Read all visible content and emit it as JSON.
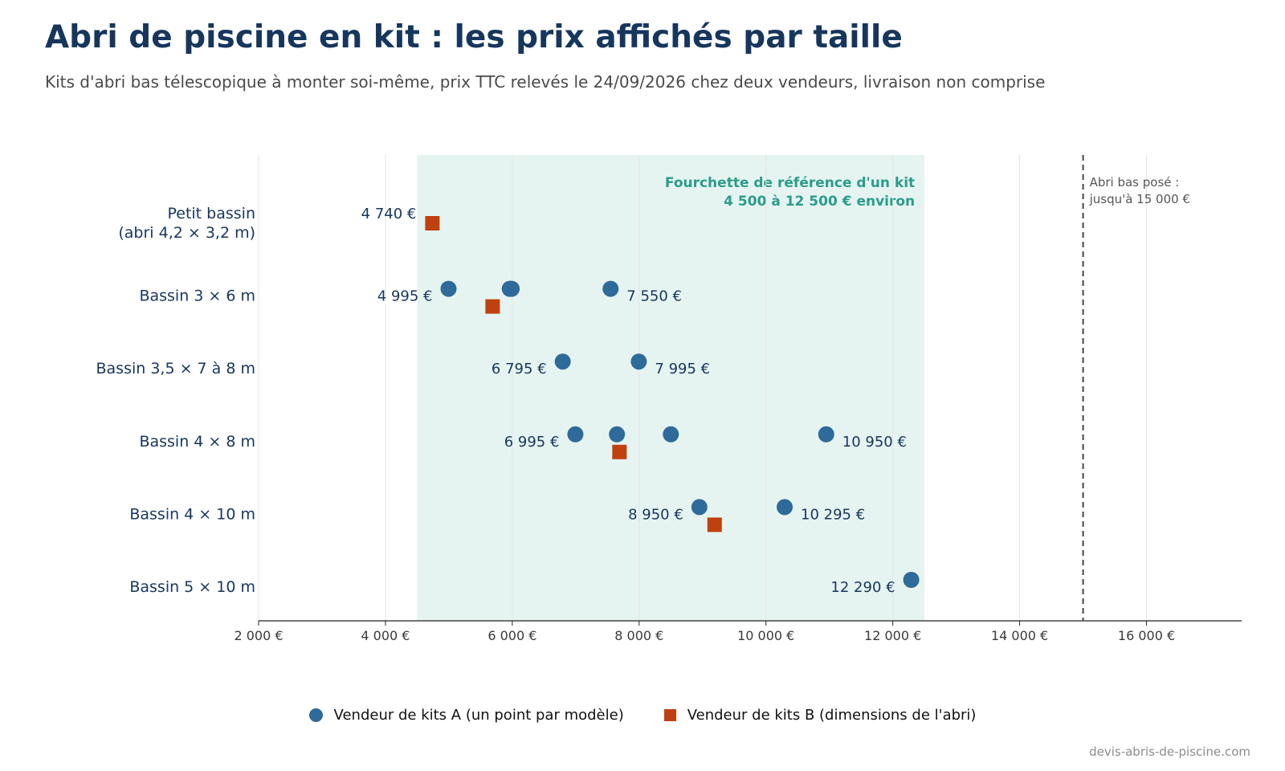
{
  "title": "Abri de piscine en kit : les prix affichés par taille",
  "subtitle": "Kits d'abri bas télescopique à monter soi-même, prix TTC relevés le 24/09/2026 chez deux vendeurs, livraison non comprise",
  "source": "devis-abris-de-piscine.com",
  "colors": {
    "vendor_a": "#2e6a9a",
    "vendor_b": "#c0410f",
    "band": "#e6f4f1",
    "band_text": "#2a9d8a",
    "axis_text": "#3a3a3a",
    "category_text": "#17365d"
  },
  "chart_data": {
    "type": "scatter",
    "orientation": "horizontal",
    "xlim": [
      2000,
      17500
    ],
    "x_ticks": [
      2000,
      4000,
      6000,
      8000,
      10000,
      12000,
      14000,
      16000
    ],
    "x_tick_labels": [
      "2 000 €",
      "4 000 €",
      "6 000 €",
      "8 000 €",
      "10 000 €",
      "12 000 €",
      "14 000 €",
      "16 000 €"
    ],
    "grid": "vertical",
    "categories": [
      "Petit bassin\n(abri 4,2 × 3,2 m)",
      "Bassin 3 × 6 m",
      "Bassin 3,5 × 7 à 8 m",
      "Bassin 4 × 8 m",
      "Bassin 4 × 10 m",
      "Bassin 5 × 10 m"
    ],
    "reference_band": {
      "from": 4500,
      "to": 12500,
      "label_line1": "Fourchette de référence d'un kit",
      "label_line2": "4 500 à 12 500 € environ"
    },
    "reference_line": {
      "x": 15000,
      "label_line1": "Abri bas posé :",
      "label_line2": "jusqu'à 15 000 €"
    },
    "series": [
      {
        "name": "Vendeur de kits A (un point par modèle)",
        "marker": "circle",
        "points": [
          {
            "category": 1,
            "x": 4995,
            "label": "4 995 €",
            "label_side": "left"
          },
          {
            "category": 1,
            "x": 5960
          },
          {
            "category": 1,
            "x": 5990
          },
          {
            "category": 1,
            "x": 7550,
            "label": "7 550 €",
            "label_side": "right"
          },
          {
            "category": 2,
            "x": 6795,
            "label": "6 795 €",
            "label_side": "left"
          },
          {
            "category": 2,
            "x": 7995,
            "label": "7 995 €",
            "label_side": "right"
          },
          {
            "category": 3,
            "x": 6995,
            "label": "6 995 €",
            "label_side": "left"
          },
          {
            "category": 3,
            "x": 7650
          },
          {
            "category": 3,
            "x": 8500
          },
          {
            "category": 3,
            "x": 10950,
            "label": "10 950 €",
            "label_side": "right"
          },
          {
            "category": 4,
            "x": 8950,
            "label": "8 950 €",
            "label_side": "left"
          },
          {
            "category": 4,
            "x": 10295,
            "label": "10 295 €",
            "label_side": "right"
          },
          {
            "category": 5,
            "x": 12290,
            "label": "12 290 €",
            "label_side": "left"
          }
        ]
      },
      {
        "name": "Vendeur de kits B (dimensions de l'abri)",
        "marker": "square",
        "points": [
          {
            "category": 0,
            "x": 4740,
            "label": "4 740 €",
            "label_side": "above-left"
          },
          {
            "category": 1,
            "x": 5690
          },
          {
            "category": 3,
            "x": 7690
          },
          {
            "category": 4,
            "x": 9190
          }
        ]
      }
    ]
  }
}
